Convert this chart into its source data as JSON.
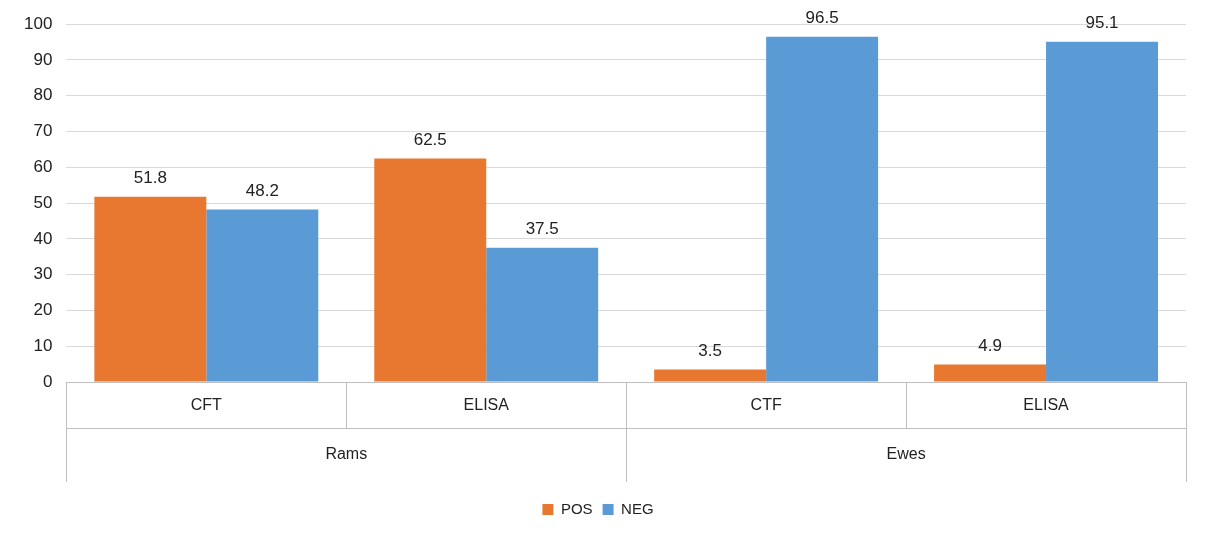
{
  "chart_data": {
    "type": "bar",
    "categories": [
      "CFT",
      "ELISA",
      "CTF",
      "ELISA"
    ],
    "series": [
      {
        "name": "POS",
        "color": "#e8782f",
        "values": [
          51.8,
          62.5,
          3.5,
          4.9
        ]
      },
      {
        "name": "NEG",
        "color": "#5b9bd5",
        "values": [
          48.2,
          37.5,
          96.5,
          95.1
        ]
      }
    ],
    "annotations": [
      "Rams",
      "Ewes"
    ],
    "ylim": [
      0,
      100
    ],
    "yticks": [
      0,
      10,
      20,
      30,
      40,
      50,
      60,
      70,
      80,
      90,
      100
    ],
    "grid": "y",
    "legend": "bottom",
    "data_labels": true
  }
}
